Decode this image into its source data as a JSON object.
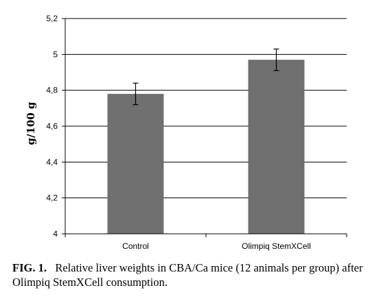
{
  "chart_data": {
    "type": "bar",
    "categories": [
      "Control",
      "Olimpiq StemXCell"
    ],
    "values": [
      4.78,
      4.97
    ],
    "errors": [
      0.06,
      0.06
    ],
    "ylabel": "g/100 g",
    "xlabel": "",
    "ylim": [
      4,
      5.2
    ],
    "yticks": [
      "4",
      "4,2",
      "4,4",
      "4,6",
      "4,8",
      "5",
      "5,2"
    ],
    "grid": true,
    "bar_color": "#707070",
    "grid_color": "#000000"
  },
  "caption": {
    "label": "FIG. 1.",
    "text": "Relative liver weights in CBA/Ca mice (12 animals per group) after Olimpiq StemXCell consumption."
  }
}
